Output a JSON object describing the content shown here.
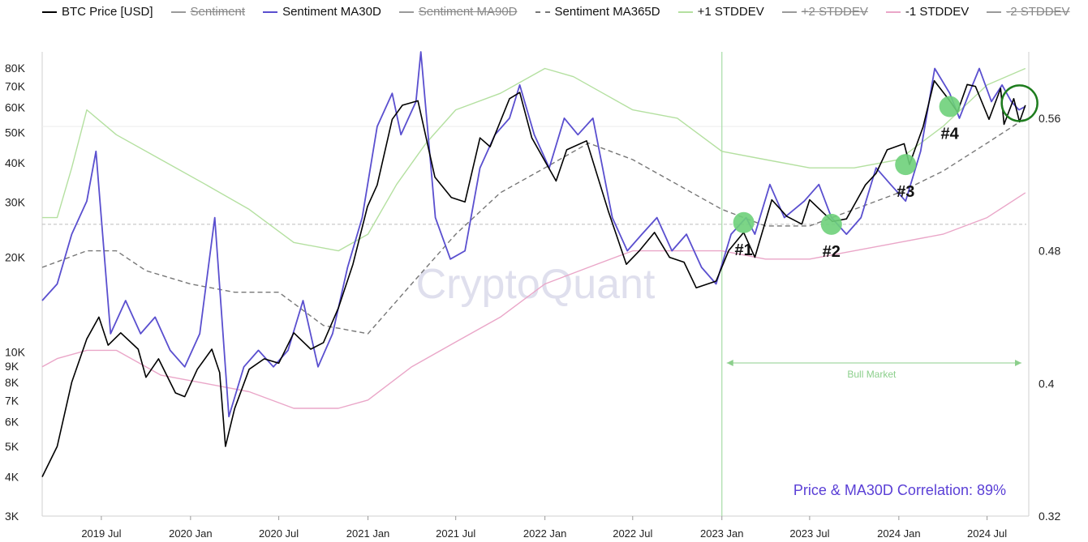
{
  "legend": [
    {
      "label": "BTC Price [USD]",
      "color": "#000000",
      "dash": false,
      "active": true,
      "icon": "solid-line-icon"
    },
    {
      "label": "Sentiment",
      "color": "#9a9a9a",
      "dash": false,
      "active": false,
      "icon": "solid-line-icon"
    },
    {
      "label": "Sentiment MA30D",
      "color": "#5a4fcf",
      "dash": false,
      "active": true,
      "icon": "solid-line-icon"
    },
    {
      "label": "Sentiment MA90D",
      "color": "#9a9a9a",
      "dash": false,
      "active": false,
      "icon": "solid-line-icon"
    },
    {
      "label": "Sentiment MA365D",
      "color": "#777777",
      "dash": true,
      "active": true,
      "icon": "dashed-line-icon"
    },
    {
      "label": "+1 STDDEV",
      "color": "#b4e0a0",
      "dash": false,
      "active": true,
      "icon": "solid-line-icon"
    },
    {
      "label": "+2 STDDEV",
      "color": "#9a9a9a",
      "dash": false,
      "active": false,
      "icon": "solid-line-icon"
    },
    {
      "label": "-1 STDDEV",
      "color": "#eaa6c8",
      "dash": false,
      "active": true,
      "icon": "solid-line-icon"
    },
    {
      "label": "-2 STDDEV",
      "color": "#9a9a9a",
      "dash": false,
      "active": false,
      "icon": "solid-line-icon"
    }
  ],
  "chart_data": {
    "type": "line",
    "title": "",
    "watermark": "CryptoQuant",
    "x_tick_labels": [
      "2019 Jul",
      "2020 Jan",
      "2020 Jul",
      "2021 Jan",
      "2021 Jul",
      "2022 Jan",
      "2022 Jul",
      "2023 Jan",
      "2023 Jul",
      "2024 Jan",
      "2024 Jul"
    ],
    "x_ticks": [
      "2019-07-01",
      "2020-01-01",
      "2020-07-01",
      "2021-01-01",
      "2021-07-01",
      "2022-01-01",
      "2022-07-01",
      "2023-01-01",
      "2023-07-01",
      "2024-01-01",
      "2024-07-01"
    ],
    "x_range": [
      "2019-03-01",
      "2024-09-20"
    ],
    "left_axis": {
      "scale": "log",
      "range": [
        3000,
        85000
      ],
      "tick_values": [
        3000,
        4000,
        5000,
        6000,
        7000,
        8000,
        9000,
        10000,
        20000,
        30000,
        40000,
        50000,
        60000,
        70000,
        80000
      ],
      "tick_labels": [
        "3K",
        "4K",
        "5K",
        "6K",
        "7K",
        "8K",
        "9K",
        "10K",
        "20K",
        "30K",
        "40K",
        "50K",
        "60K",
        "70K",
        "80K"
      ]
    },
    "right_axis": {
      "scale": "linear",
      "range": [
        0.32,
        0.6
      ],
      "tick_values": [
        0.32,
        0.4,
        0.48,
        0.56
      ],
      "tick_labels": [
        "0.32",
        "0.4",
        "0.48",
        "0.56"
      ]
    },
    "grid": false,
    "reference_lines": [
      {
        "axis": "right",
        "value": 0.496,
        "style": "dashed"
      },
      {
        "axis": "right",
        "value": 0.555,
        "style": "solid-light"
      }
    ],
    "series": [
      {
        "name": "BTC Price [USD]",
        "axis": "left",
        "color": "#000000",
        "width": 1.6,
        "points": [
          [
            "2019-03-01",
            4000
          ],
          [
            "2019-04-01",
            5000
          ],
          [
            "2019-05-01",
            8000
          ],
          [
            "2019-06-01",
            11000
          ],
          [
            "2019-06-26",
            12900
          ],
          [
            "2019-07-15",
            10500
          ],
          [
            "2019-08-10",
            11500
          ],
          [
            "2019-09-15",
            10200
          ],
          [
            "2019-10-01",
            8300
          ],
          [
            "2019-10-27",
            9500
          ],
          [
            "2019-12-01",
            7400
          ],
          [
            "2019-12-20",
            7200
          ],
          [
            "2020-01-15",
            8800
          ],
          [
            "2020-02-14",
            10200
          ],
          [
            "2020-03-01",
            8600
          ],
          [
            "2020-03-13",
            5000
          ],
          [
            "2020-04-01",
            6600
          ],
          [
            "2020-05-01",
            8800
          ],
          [
            "2020-06-01",
            9500
          ],
          [
            "2020-07-01",
            9200
          ],
          [
            "2020-08-01",
            11500
          ],
          [
            "2020-09-05",
            10200
          ],
          [
            "2020-10-01",
            10700
          ],
          [
            "2020-11-01",
            13800
          ],
          [
            "2020-12-01",
            19000
          ],
          [
            "2020-12-31",
            29000
          ],
          [
            "2021-01-20",
            34000
          ],
          [
            "2021-02-20",
            55000
          ],
          [
            "2021-03-13",
            61000
          ],
          [
            "2021-04-14",
            63000
          ],
          [
            "2021-05-19",
            36000
          ],
          [
            "2021-06-22",
            31000
          ],
          [
            "2021-07-20",
            30000
          ],
          [
            "2021-08-20",
            48000
          ],
          [
            "2021-09-10",
            45000
          ],
          [
            "2021-10-20",
            64000
          ],
          [
            "2021-11-10",
            67000
          ],
          [
            "2021-12-05",
            48000
          ],
          [
            "2022-01-24",
            35000
          ],
          [
            "2022-02-15",
            44000
          ],
          [
            "2022-03-28",
            47000
          ],
          [
            "2022-05-12",
            28000
          ],
          [
            "2022-06-18",
            19000
          ],
          [
            "2022-07-15",
            21000
          ],
          [
            "2022-08-15",
            24000
          ],
          [
            "2022-09-15",
            20000
          ],
          [
            "2022-10-15",
            19300
          ],
          [
            "2022-11-09",
            16000
          ],
          [
            "2022-12-20",
            16800
          ],
          [
            "2023-01-15",
            21000
          ],
          [
            "2023-02-15",
            24000
          ],
          [
            "2023-03-10",
            20000
          ],
          [
            "2023-04-14",
            30500
          ],
          [
            "2023-05-15",
            27000
          ],
          [
            "2023-06-15",
            25500
          ],
          [
            "2023-07-01",
            30500
          ],
          [
            "2023-08-17",
            26000
          ],
          [
            "2023-09-15",
            26500
          ],
          [
            "2023-10-24",
            34000
          ],
          [
            "2023-11-15",
            37000
          ],
          [
            "2023-12-08",
            44000
          ],
          [
            "2024-01-12",
            46000
          ],
          [
            "2024-01-23",
            39500
          ],
          [
            "2024-02-20",
            52000
          ],
          [
            "2024-03-14",
            73000
          ],
          [
            "2024-04-15",
            63000
          ],
          [
            "2024-05-01",
            58000
          ],
          [
            "2024-05-21",
            71000
          ],
          [
            "2024-06-07",
            70000
          ],
          [
            "2024-07-05",
            55000
          ],
          [
            "2024-07-29",
            69000
          ],
          [
            "2024-08-05",
            53000
          ],
          [
            "2024-08-25",
            64000
          ],
          [
            "2024-09-06",
            54000
          ],
          [
            "2024-09-18",
            61000
          ]
        ]
      },
      {
        "name": "Sentiment MA30D",
        "axis": "right",
        "color": "#5a4fcf",
        "width": 1.8,
        "points": [
          [
            "2019-03-01",
            0.45
          ],
          [
            "2019-04-01",
            0.46
          ],
          [
            "2019-05-01",
            0.49
          ],
          [
            "2019-06-01",
            0.51
          ],
          [
            "2019-06-20",
            0.54
          ],
          [
            "2019-07-20",
            0.43
          ],
          [
            "2019-08-20",
            0.45
          ],
          [
            "2019-09-20",
            0.43
          ],
          [
            "2019-10-20",
            0.44
          ],
          [
            "2019-11-20",
            0.42
          ],
          [
            "2019-12-20",
            0.41
          ],
          [
            "2020-01-20",
            0.43
          ],
          [
            "2020-02-20",
            0.5
          ],
          [
            "2020-03-20",
            0.38
          ],
          [
            "2020-04-20",
            0.41
          ],
          [
            "2020-05-20",
            0.42
          ],
          [
            "2020-06-20",
            0.41
          ],
          [
            "2020-07-20",
            0.42
          ],
          [
            "2020-08-20",
            0.45
          ],
          [
            "2020-09-20",
            0.41
          ],
          [
            "2020-10-20",
            0.43
          ],
          [
            "2020-11-20",
            0.47
          ],
          [
            "2020-12-20",
            0.5
          ],
          [
            "2021-01-20",
            0.555
          ],
          [
            "2021-02-20",
            0.575
          ],
          [
            "2021-03-10",
            0.55
          ],
          [
            "2021-04-10",
            0.57
          ],
          [
            "2021-04-20",
            0.6
          ],
          [
            "2021-05-20",
            0.5
          ],
          [
            "2021-06-20",
            0.475
          ],
          [
            "2021-07-20",
            0.48
          ],
          [
            "2021-08-20",
            0.53
          ],
          [
            "2021-09-20",
            0.55
          ],
          [
            "2021-10-20",
            0.56
          ],
          [
            "2021-11-10",
            0.58
          ],
          [
            "2021-12-10",
            0.55
          ],
          [
            "2022-01-10",
            0.53
          ],
          [
            "2022-02-10",
            0.56
          ],
          [
            "2022-03-10",
            0.55
          ],
          [
            "2022-04-10",
            0.56
          ],
          [
            "2022-05-20",
            0.5
          ],
          [
            "2022-06-20",
            0.48
          ],
          [
            "2022-07-20",
            0.49
          ],
          [
            "2022-08-20",
            0.5
          ],
          [
            "2022-09-20",
            0.48
          ],
          [
            "2022-10-20",
            0.49
          ],
          [
            "2022-11-20",
            0.47
          ],
          [
            "2022-12-20",
            0.46
          ],
          [
            "2023-01-20",
            0.49
          ],
          [
            "2023-02-20",
            0.5
          ],
          [
            "2023-03-10",
            0.49
          ],
          [
            "2023-04-10",
            0.52
          ],
          [
            "2023-05-10",
            0.5
          ],
          [
            "2023-06-20",
            0.51
          ],
          [
            "2023-07-20",
            0.52
          ],
          [
            "2023-08-15",
            0.5
          ],
          [
            "2023-09-15",
            0.49
          ],
          [
            "2023-10-15",
            0.5
          ],
          [
            "2023-11-15",
            0.53
          ],
          [
            "2023-12-15",
            0.52
          ],
          [
            "2024-01-15",
            0.51
          ],
          [
            "2024-02-15",
            0.54
          ],
          [
            "2024-03-15",
            0.59
          ],
          [
            "2024-04-15",
            0.575
          ],
          [
            "2024-05-05",
            0.56
          ],
          [
            "2024-05-25",
            0.575
          ],
          [
            "2024-06-15",
            0.59
          ],
          [
            "2024-07-10",
            0.57
          ],
          [
            "2024-08-01",
            0.58
          ],
          [
            "2024-08-20",
            0.57
          ],
          [
            "2024-09-05",
            0.565
          ],
          [
            "2024-09-18",
            0.567
          ]
        ]
      },
      {
        "name": "Sentiment MA365D",
        "axis": "right",
        "color": "#777777",
        "width": 1.4,
        "dash": true,
        "points": [
          [
            "2019-03-01",
            0.47
          ],
          [
            "2019-06-01",
            0.48
          ],
          [
            "2019-08-01",
            0.48
          ],
          [
            "2019-10-01",
            0.468
          ],
          [
            "2020-01-01",
            0.46
          ],
          [
            "2020-04-01",
            0.455
          ],
          [
            "2020-07-01",
            0.455
          ],
          [
            "2020-10-01",
            0.435
          ],
          [
            "2021-01-01",
            0.43
          ],
          [
            "2021-04-01",
            0.46
          ],
          [
            "2021-07-01",
            0.49
          ],
          [
            "2021-10-01",
            0.515
          ],
          [
            "2022-01-01",
            0.53
          ],
          [
            "2022-04-01",
            0.545
          ],
          [
            "2022-07-01",
            0.535
          ],
          [
            "2022-10-01",
            0.52
          ],
          [
            "2023-01-01",
            0.505
          ],
          [
            "2023-04-01",
            0.495
          ],
          [
            "2023-07-01",
            0.495
          ],
          [
            "2023-10-01",
            0.505
          ],
          [
            "2024-01-01",
            0.515
          ],
          [
            "2024-04-01",
            0.528
          ],
          [
            "2024-07-01",
            0.545
          ],
          [
            "2024-09-18",
            0.56
          ]
        ]
      },
      {
        "name": "+1 STDDEV",
        "axis": "right",
        "color": "#b4e0a0",
        "width": 1.4,
        "points": [
          [
            "2019-03-01",
            0.5
          ],
          [
            "2019-04-01",
            0.5
          ],
          [
            "2019-05-01",
            0.53
          ],
          [
            "2019-06-01",
            0.565
          ],
          [
            "2019-08-01",
            0.55
          ],
          [
            "2019-11-01",
            0.535
          ],
          [
            "2020-02-01",
            0.52
          ],
          [
            "2020-05-01",
            0.505
          ],
          [
            "2020-08-01",
            0.485
          ],
          [
            "2020-11-01",
            0.48
          ],
          [
            "2021-01-01",
            0.49
          ],
          [
            "2021-03-01",
            0.52
          ],
          [
            "2021-05-01",
            0.545
          ],
          [
            "2021-07-01",
            0.565
          ],
          [
            "2021-10-01",
            0.575
          ],
          [
            "2022-01-01",
            0.59
          ],
          [
            "2022-03-01",
            0.585
          ],
          [
            "2022-05-01",
            0.575
          ],
          [
            "2022-07-01",
            0.565
          ],
          [
            "2022-10-01",
            0.56
          ],
          [
            "2023-01-01",
            0.54
          ],
          [
            "2023-04-01",
            0.535
          ],
          [
            "2023-07-01",
            0.53
          ],
          [
            "2023-10-01",
            0.53
          ],
          [
            "2024-01-01",
            0.535
          ],
          [
            "2024-04-01",
            0.555
          ],
          [
            "2024-07-01",
            0.58
          ],
          [
            "2024-09-18",
            0.59
          ]
        ]
      },
      {
        "name": "-1 STDDEV",
        "axis": "right",
        "color": "#eaa6c8",
        "width": 1.4,
        "points": [
          [
            "2019-03-01",
            0.41
          ],
          [
            "2019-04-01",
            0.415
          ],
          [
            "2019-06-01",
            0.42
          ],
          [
            "2019-08-01",
            0.42
          ],
          [
            "2019-11-01",
            0.405
          ],
          [
            "2020-02-01",
            0.4
          ],
          [
            "2020-05-01",
            0.395
          ],
          [
            "2020-08-01",
            0.385
          ],
          [
            "2020-11-01",
            0.385
          ],
          [
            "2021-01-01",
            0.39
          ],
          [
            "2021-04-01",
            0.41
          ],
          [
            "2021-07-01",
            0.425
          ],
          [
            "2021-10-01",
            0.44
          ],
          [
            "2022-01-01",
            0.46
          ],
          [
            "2022-04-01",
            0.47
          ],
          [
            "2022-07-01",
            0.48
          ],
          [
            "2022-10-01",
            0.48
          ],
          [
            "2023-01-01",
            0.48
          ],
          [
            "2023-04-01",
            0.475
          ],
          [
            "2023-07-01",
            0.475
          ],
          [
            "2023-10-01",
            0.48
          ],
          [
            "2024-01-01",
            0.485
          ],
          [
            "2024-04-01",
            0.49
          ],
          [
            "2024-07-01",
            0.5
          ],
          [
            "2024-09-18",
            0.515
          ]
        ]
      }
    ],
    "annotations": {
      "markers": [
        {
          "label": "#1",
          "x": "2023-02-15",
          "y": 0.497
        },
        {
          "label": "#2",
          "x": "2023-08-15",
          "y": 0.496
        },
        {
          "label": "#3",
          "x": "2024-01-15",
          "y": 0.532
        },
        {
          "label": "#4",
          "x": "2024-04-15",
          "y": 0.567
        }
      ],
      "highlight_circle": {
        "x": "2024-09-06",
        "y": 0.57
      },
      "bull_market": {
        "label": "Bull Market",
        "start": "2023-01-01",
        "end": "2024-09-20"
      },
      "correlation_text": "Price & MA30D Correlation: 89%"
    }
  }
}
